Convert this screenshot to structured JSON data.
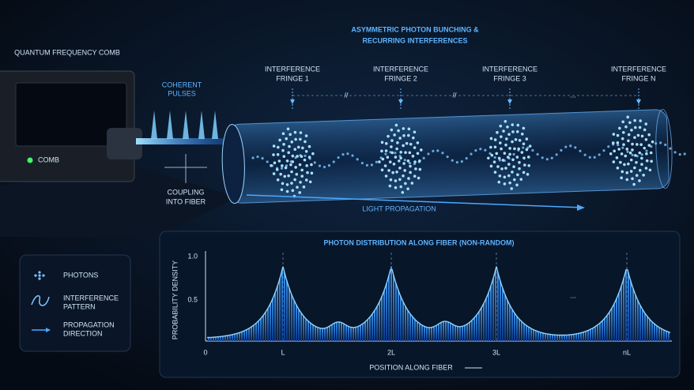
{
  "header": {
    "title_lines": [
      "ASYMMETRIC PHOTON BUNCHING &",
      "RECURRING INTERFERENCES"
    ]
  },
  "source": {
    "label": "QUANTUM FREQUENCY COMB",
    "device_label": "COMB",
    "pulses_lines": [
      "COHERENT",
      "PULSES"
    ],
    "coupling_lines": [
      "COUPLING",
      "INTO FIBER"
    ]
  },
  "fringes": [
    {
      "lines": [
        "INTERFERENCE",
        "FRINGE 1"
      ]
    },
    {
      "lines": [
        "INTERFERENCE",
        "FRINGE 2"
      ]
    },
    {
      "lines": [
        "INTERFERENCE",
        "FRINGE 3"
      ]
    },
    {
      "lines": [
        "INTERFERENCE",
        "FRINGE N"
      ]
    }
  ],
  "separators": [
    "//",
    "//",
    "..."
  ],
  "propagation_label": "LIGHT PROPAGATION",
  "inset": {
    "title": "PHOTON DISTRIBUTION ALONG FIBER (NON-RANDOM)",
    "y_label": "PROBABILITY DENSITY",
    "y_ticks": [
      "1.0",
      "0.5"
    ],
    "x_ticks": [
      "0",
      "L",
      "2L",
      "3L",
      "nL"
    ],
    "ellipsis": "...",
    "x_label": "POSITION ALONG FIBER"
  },
  "legend": {
    "items": [
      {
        "lines": [
          "PHOTONS"
        ]
      },
      {
        "lines": [
          "INTERFERENCE",
          "PATTERN"
        ]
      },
      {
        "lines": [
          "PROPAGATION",
          "DIRECTION"
        ]
      }
    ]
  }
}
